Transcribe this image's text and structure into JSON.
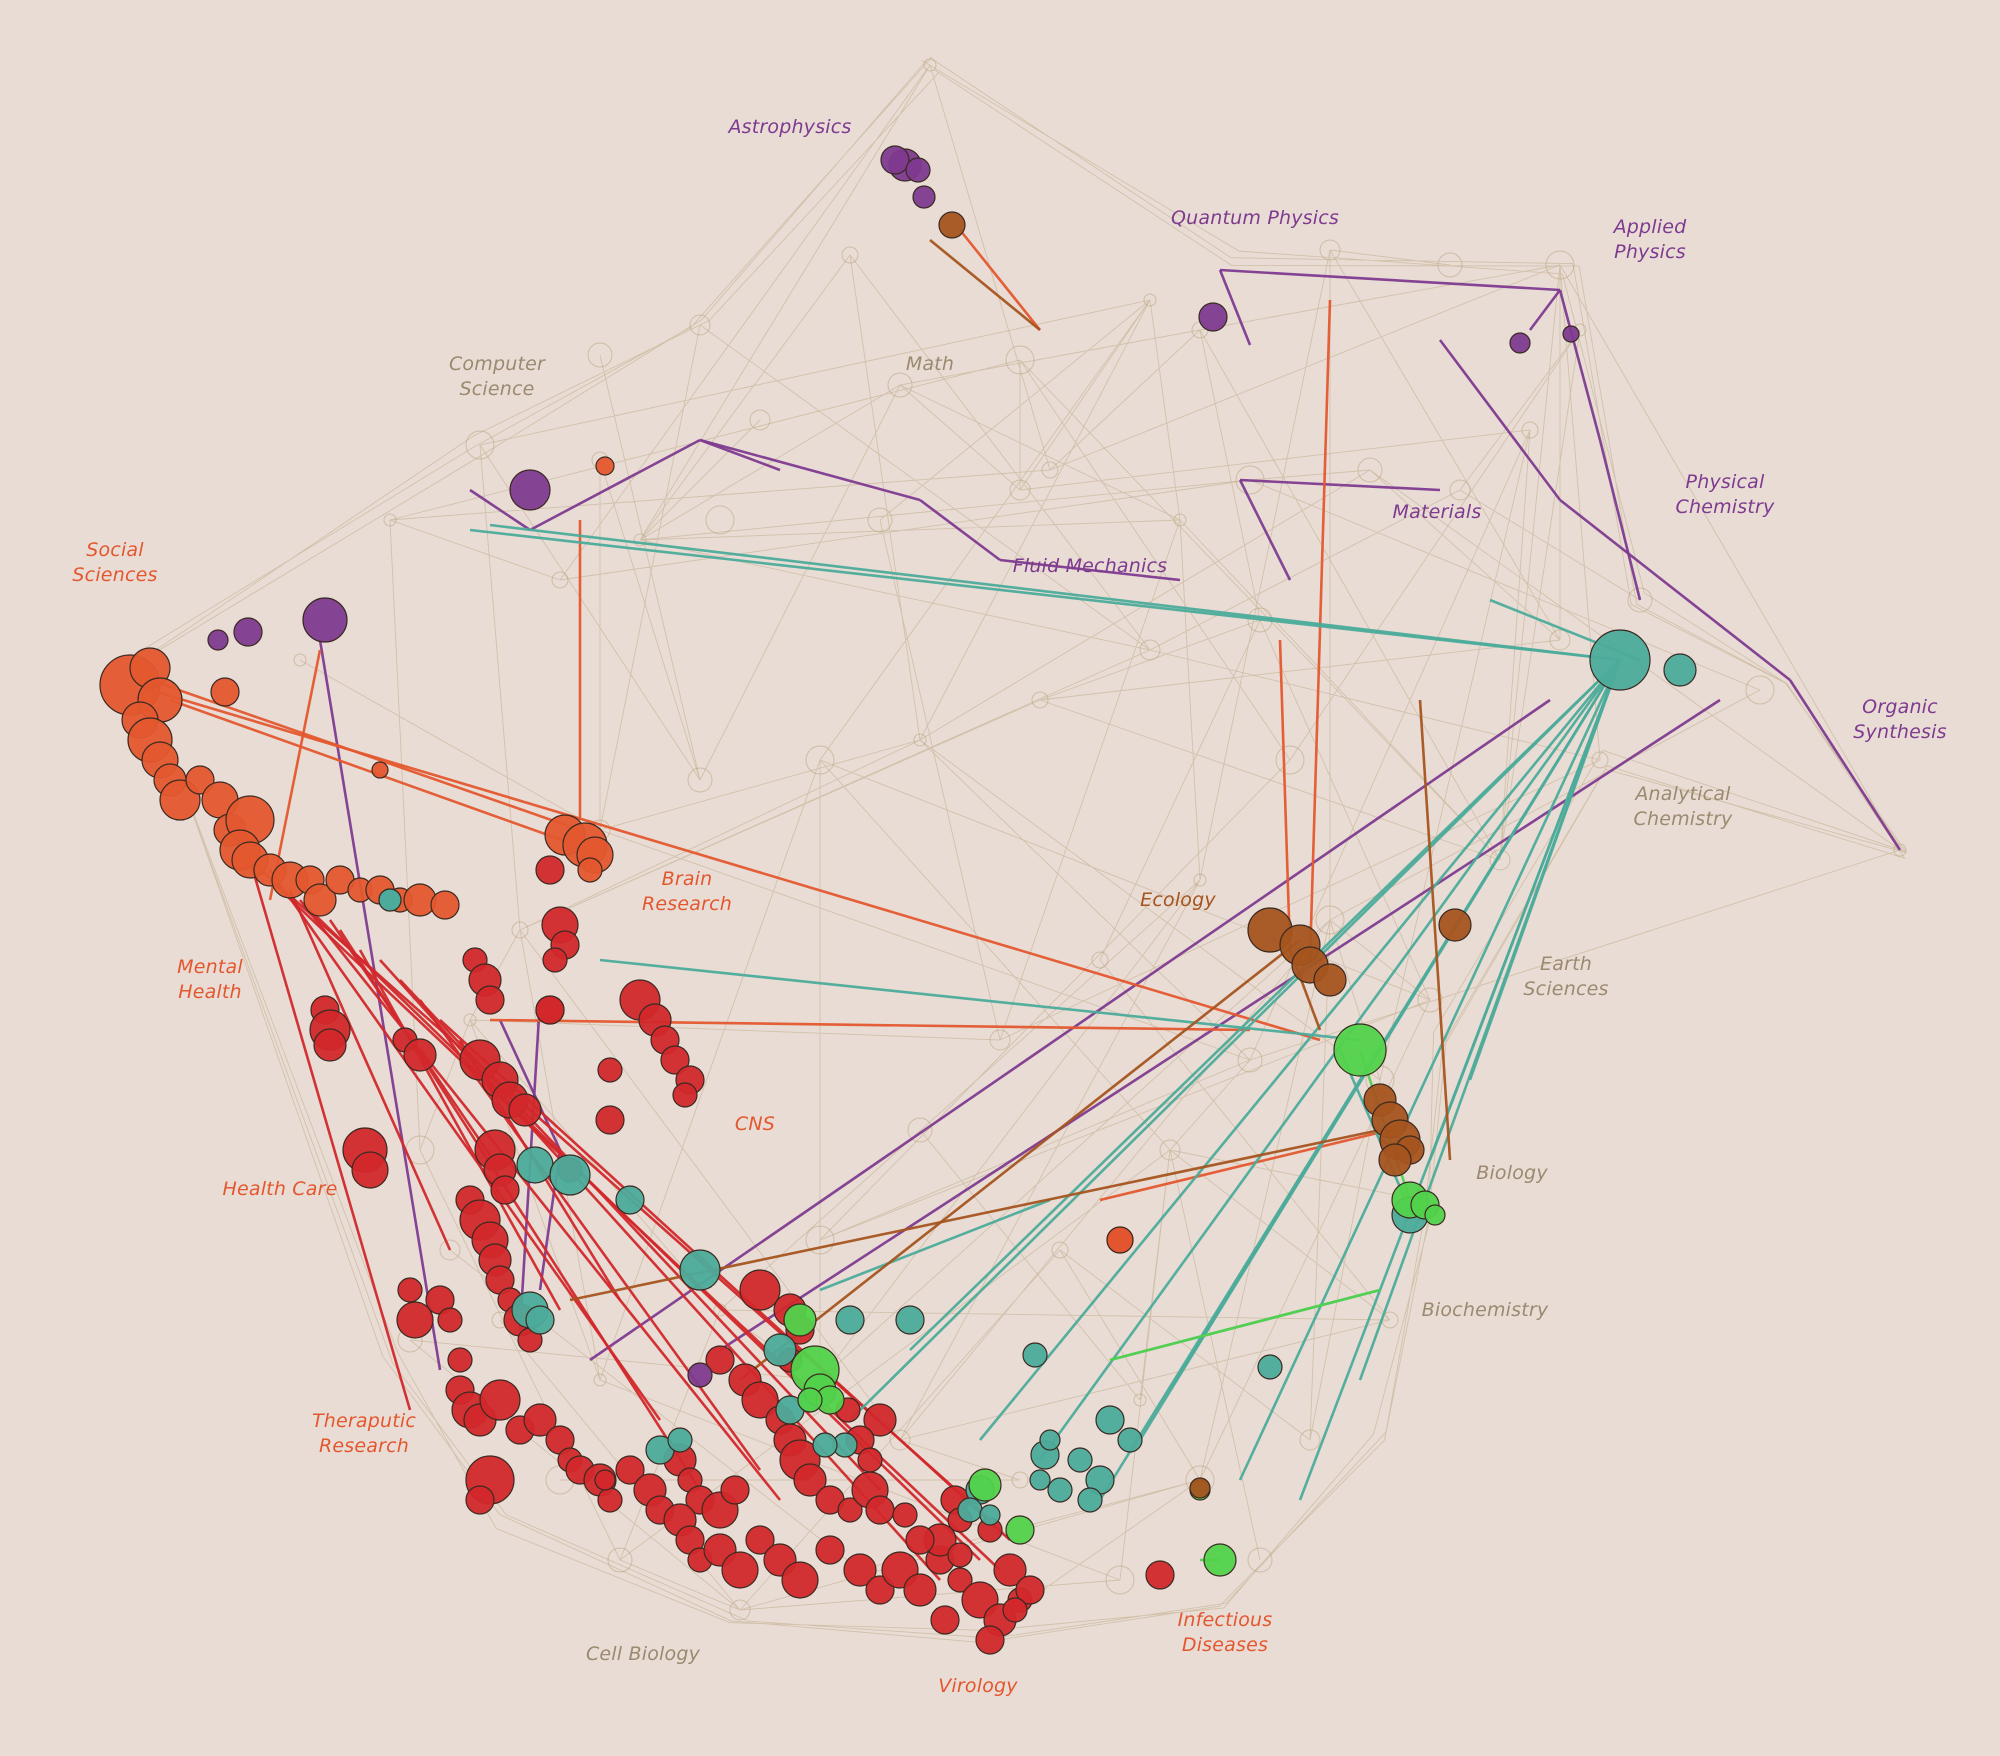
{
  "colors": {
    "background": "#e8dcd5",
    "physics": "#7e3a8f",
    "social": "#e4572e",
    "medical": "#d2282b",
    "chemistry": "#4cab9a",
    "biology": "#52d24b",
    "earth": "#a5541f",
    "network": "#b7a076"
  },
  "labels": [
    {
      "id": "astrophysics",
      "lines": [
        "Astrophysics"
      ],
      "group": "physics"
    },
    {
      "id": "quantum-physics",
      "lines": [
        "Quantum Physics"
      ],
      "group": "physics"
    },
    {
      "id": "applied-physics",
      "lines": [
        "Applied",
        "Physics"
      ],
      "group": "physics"
    },
    {
      "id": "computer-science",
      "lines": [
        "Computer",
        "Science"
      ],
      "group": "network"
    },
    {
      "id": "math",
      "lines": [
        "Math"
      ],
      "group": "network"
    },
    {
      "id": "physical-chemistry",
      "lines": [
        "Physical",
        "Chemistry"
      ],
      "group": "physics"
    },
    {
      "id": "materials",
      "lines": [
        "Materials"
      ],
      "group": "physics"
    },
    {
      "id": "fluid-mechanics",
      "lines": [
        "Fluid Mechanics"
      ],
      "group": "physics"
    },
    {
      "id": "social-sciences",
      "lines": [
        "Social",
        "Sciences"
      ],
      "group": "social"
    },
    {
      "id": "organic-synthesis",
      "lines": [
        "Organic",
        "Synthesis"
      ],
      "group": "physics"
    },
    {
      "id": "analytical-chemistry",
      "lines": [
        "Analytical",
        "Chemistry"
      ],
      "group": "network"
    },
    {
      "id": "brain-research",
      "lines": [
        "Brain",
        "Research"
      ],
      "group": "social"
    },
    {
      "id": "ecology",
      "lines": [
        "Ecology"
      ],
      "group": "earth"
    },
    {
      "id": "mental-health",
      "lines": [
        "Mental",
        "Health"
      ],
      "group": "social"
    },
    {
      "id": "earth-sciences",
      "lines": [
        "Earth",
        "Sciences"
      ],
      "group": "network"
    },
    {
      "id": "cns",
      "lines": [
        "CNS"
      ],
      "group": "social"
    },
    {
      "id": "biology",
      "lines": [
        "Biology"
      ],
      "group": "network"
    },
    {
      "id": "health-care",
      "lines": [
        "Health Care"
      ],
      "group": "social"
    },
    {
      "id": "biochemistry",
      "lines": [
        "Biochemistry"
      ],
      "group": "network"
    },
    {
      "id": "theraputic-research",
      "lines": [
        "Theraputic",
        "Research"
      ],
      "group": "social"
    },
    {
      "id": "infectious-diseases",
      "lines": [
        "Infectious",
        "Diseases"
      ],
      "group": "social"
    },
    {
      "id": "cell-biology",
      "lines": [
        "Cell Biology"
      ],
      "group": "network"
    },
    {
      "id": "virology",
      "lines": [
        "Virology"
      ],
      "group": "social"
    }
  ]
}
